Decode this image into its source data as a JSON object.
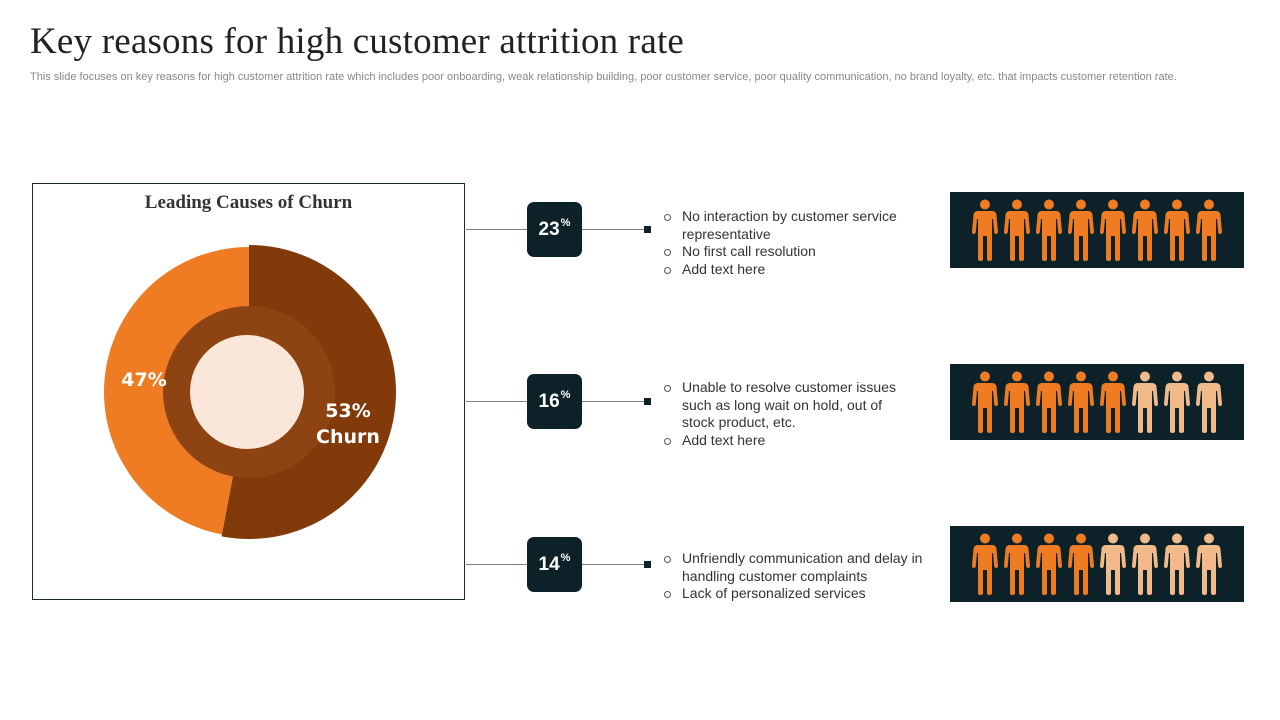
{
  "header": {
    "title": "Key reasons for high customer attrition rate",
    "subtitle": "This slide focuses on key reasons for high customer attrition rate which includes poor onboarding, weak relationship building, poor customer service, poor quality communication, no brand loyalty, etc. that impacts customer retention rate."
  },
  "chart_data": {
    "type": "pie",
    "title": "Leading Causes of Churn",
    "slices": [
      {
        "label": "47%",
        "value": 47,
        "color": "#ef7b22"
      },
      {
        "label": "53%",
        "sublabel": "Churn",
        "value": 53,
        "color": "#833a0a"
      }
    ]
  },
  "reasons": [
    {
      "value": "23",
      "symbol": "%",
      "bullets": [
        "No interaction by customer service representative",
        "No first call resolution",
        "Add text here"
      ],
      "highlighted": 8
    },
    {
      "value": "16",
      "symbol": "%",
      "bullets": [
        "Unable to resolve customer issues such as long wait on hold, out of stock product, etc.",
        "Add text here"
      ],
      "highlighted": 5
    },
    {
      "value": "14",
      "symbol": "%",
      "bullets": [
        "Unfriendly communication and delay in handling customer complaints",
        "Lack of personalized services"
      ],
      "highlighted": 4
    }
  ],
  "people_total": 8,
  "colors": {
    "dark": "#0d2228",
    "person_active": "#ef7b22",
    "person_inactive": "#f2b98a",
    "donut_hole": "#fbe7d9",
    "inner_ring": "#8e4313"
  }
}
